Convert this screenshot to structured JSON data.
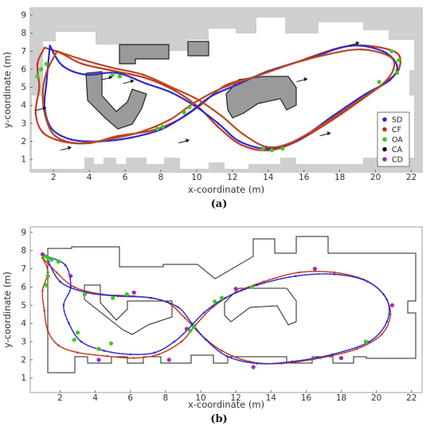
{
  "chart_data": [
    {
      "type": "scatter",
      "panel_label": "(a)",
      "xlabel": "x-coordinate (m)",
      "ylabel": "y-coordinate (m)",
      "xlim": [
        0.7,
        22.6
      ],
      "ylim": [
        0.3,
        9.4
      ],
      "xticks": [
        2,
        4,
        6,
        8,
        10,
        12,
        14,
        16,
        18,
        20,
        22
      ],
      "yticks": [
        1,
        2,
        3,
        4,
        5,
        6,
        7,
        8,
        9
      ],
      "background": "occupancy-grid-map",
      "legend": {
        "placement": "right",
        "entries": [
          {
            "label": "SD",
            "color": "#2b2bd6"
          },
          {
            "label": "CF",
            "color": "#b13a1a"
          },
          {
            "label": "OA",
            "color": "#39c91f"
          },
          {
            "label": "CA",
            "color": "#111111"
          },
          {
            "label": "CD",
            "color": "#a52ab8"
          }
        ]
      },
      "direction_arrows": [
        [
          18.8,
          7.4
        ],
        [
          15.9,
          5.4
        ],
        [
          17.2,
          2.4
        ],
        [
          9.3,
          2.0
        ],
        [
          2.7,
          1.6
        ],
        [
          1.3,
          3.8
        ],
        [
          6.2,
          5.3
        ],
        [
          5.0,
          5.5
        ]
      ],
      "trajectories": [
        {
          "name": "",
          "color": "#c23c20",
          "points": [
            [
              1.5,
              7.2
            ],
            [
              1.1,
              6.3
            ],
            [
              1.2,
              5.0
            ],
            [
              1.0,
              3.6
            ],
            [
              1.4,
              2.5
            ],
            [
              2.5,
              2.0
            ],
            [
              4.0,
              1.9
            ],
            [
              5.6,
              2.3
            ],
            [
              7.5,
              2.6
            ],
            [
              9.0,
              3.2
            ],
            [
              10.2,
              4.0
            ],
            [
              11.6,
              5.1
            ],
            [
              13.3,
              5.6
            ],
            [
              15.6,
              6.4
            ],
            [
              18.0,
              7.2
            ],
            [
              19.6,
              7.3
            ],
            [
              21.2,
              6.9
            ],
            [
              21.3,
              6.0
            ],
            [
              20.6,
              5.3
            ],
            [
              19.2,
              4.3
            ],
            [
              17.6,
              3.2
            ],
            [
              15.6,
              2.0
            ],
            [
              14.0,
              1.5
            ],
            [
              12.5,
              1.8
            ],
            [
              11.2,
              2.8
            ],
            [
              10.1,
              3.9
            ],
            [
              8.8,
              4.8
            ],
            [
              7.2,
              5.5
            ],
            [
              5.4,
              5.9
            ],
            [
              3.6,
              6.3
            ],
            [
              2.4,
              6.9
            ],
            [
              1.5,
              7.2
            ]
          ]
        },
        {
          "name": "",
          "color": "#2c2cd0",
          "points": [
            [
              1.8,
              7.3
            ],
            [
              2.5,
              6.2
            ],
            [
              3.8,
              5.7
            ],
            [
              5.5,
              5.8
            ],
            [
              7.2,
              5.2
            ],
            [
              8.6,
              4.7
            ],
            [
              10.0,
              3.9
            ],
            [
              11.2,
              3.0
            ],
            [
              12.4,
              2.0
            ],
            [
              14.0,
              1.6
            ],
            [
              15.7,
              2.1
            ],
            [
              17.6,
              3.4
            ],
            [
              19.4,
              4.6
            ],
            [
              20.8,
              5.4
            ],
            [
              21.2,
              6.2
            ],
            [
              20.4,
              7.0
            ],
            [
              18.6,
              7.3
            ],
            [
              16.3,
              6.6
            ],
            [
              14.0,
              5.9
            ],
            [
              12.4,
              5.2
            ],
            [
              10.8,
              4.5
            ],
            [
              9.6,
              3.6
            ],
            [
              8.1,
              2.7
            ],
            [
              6.3,
              2.2
            ],
            [
              4.6,
              2.0
            ],
            [
              3.0,
              2.1
            ],
            [
              1.9,
              2.7
            ],
            [
              1.5,
              3.9
            ],
            [
              1.6,
              5.2
            ],
            [
              1.7,
              6.3
            ],
            [
              1.8,
              7.3
            ]
          ]
        },
        {
          "name": "",
          "color": "#b84a22",
          "points": [
            [
              2.2,
              7.0
            ],
            [
              3.4,
              6.6
            ],
            [
              5.2,
              6.1
            ],
            [
              7.0,
              5.7
            ],
            [
              8.6,
              5.0
            ],
            [
              10.1,
              4.3
            ],
            [
              11.4,
              3.4
            ],
            [
              12.6,
              2.4
            ],
            [
              13.9,
              1.7
            ],
            [
              15.2,
              1.9
            ],
            [
              17.0,
              2.9
            ],
            [
              18.8,
              4.1
            ],
            [
              20.3,
              5.1
            ],
            [
              21.0,
              6.0
            ],
            [
              20.8,
              6.7
            ],
            [
              19.2,
              7.1
            ],
            [
              17.2,
              6.8
            ],
            [
              15.0,
              6.2
            ],
            [
              13.0,
              5.5
            ],
            [
              11.3,
              4.9
            ],
            [
              9.8,
              4.1
            ],
            [
              8.5,
              3.2
            ],
            [
              6.8,
              2.5
            ],
            [
              5.0,
              2.1
            ],
            [
              3.3,
              1.9
            ],
            [
              2.1,
              2.3
            ],
            [
              1.6,
              3.2
            ],
            [
              1.4,
              4.5
            ],
            [
              1.6,
              5.8
            ],
            [
              2.2,
              7.0
            ]
          ]
        },
        {
          "name": "",
          "color": "#3bcc22",
          "points": [
            [
              1.1,
              5.6
            ],
            [
              1.3,
              6.0
            ],
            [
              1.6,
              6.3
            ],
            [
              5.3,
              5.7
            ],
            [
              5.7,
              5.6
            ],
            [
              9.3,
              3.6
            ],
            [
              9.6,
              3.9
            ],
            [
              13.7,
              1.6
            ],
            [
              14.2,
              1.5
            ],
            [
              14.8,
              1.6
            ],
            [
              20.2,
              5.3
            ],
            [
              21.2,
              5.8
            ],
            [
              21.3,
              6.5
            ],
            [
              20.9,
              7.0
            ],
            [
              7.8,
              2.7
            ],
            [
              8.1,
              2.8
            ]
          ]
        }
      ]
    },
    {
      "type": "scatter",
      "panel_label": "(b)",
      "xlabel": "x-coordinate (m)",
      "ylabel": "y-coordinate (m)",
      "xlim": [
        0.3,
        22.6
      ],
      "ylim": [
        0.2,
        9.3
      ],
      "xticks": [
        2,
        4,
        6,
        8,
        10,
        12,
        14,
        16,
        18,
        20,
        22
      ],
      "yticks": [
        1,
        2,
        3,
        4,
        5,
        6,
        7,
        8,
        9
      ],
      "background": "polygon-outline-map",
      "trajectories": [
        {
          "name": "",
          "color": "#c23c20",
          "points": [
            [
              1.0,
              7.6
            ],
            [
              1.3,
              6.8
            ],
            [
              1.0,
              5.8
            ],
            [
              1.1,
              4.7
            ],
            [
              1.3,
              3.6
            ],
            [
              1.9,
              2.8
            ],
            [
              3.0,
              2.4
            ],
            [
              4.7,
              2.2
            ],
            [
              6.2,
              2.1
            ],
            [
              7.6,
              2.3
            ],
            [
              8.9,
              3.0
            ],
            [
              9.7,
              3.9
            ],
            [
              10.7,
              4.9
            ],
            [
              12.0,
              5.7
            ],
            [
              13.6,
              6.3
            ],
            [
              15.6,
              6.8
            ],
            [
              17.6,
              6.8
            ],
            [
              19.3,
              6.4
            ],
            [
              20.4,
              5.6
            ],
            [
              20.8,
              4.5
            ],
            [
              20.3,
              3.4
            ],
            [
              18.9,
              2.6
            ],
            [
              16.8,
              2.1
            ],
            [
              14.6,
              1.8
            ],
            [
              12.8,
              1.9
            ],
            [
              11.2,
              2.5
            ],
            [
              10.0,
              3.4
            ],
            [
              9.1,
              4.3
            ],
            [
              8.0,
              5.2
            ],
            [
              6.2,
              5.5
            ],
            [
              4.4,
              5.6
            ],
            [
              2.8,
              6.0
            ],
            [
              1.8,
              6.8
            ],
            [
              1.0,
              7.6
            ]
          ]
        },
        {
          "name": "",
          "color": "#2c2cd0",
          "points": [
            [
              1.2,
              7.7
            ],
            [
              2.3,
              7.2
            ],
            [
              2.6,
              6.0
            ],
            [
              2.2,
              5.0
            ],
            [
              2.5,
              4.0
            ],
            [
              3.2,
              3.0
            ],
            [
              4.5,
              2.5
            ],
            [
              6.0,
              2.3
            ],
            [
              7.4,
              2.4
            ],
            [
              8.5,
              3.0
            ],
            [
              9.3,
              3.7
            ],
            [
              10.2,
              4.6
            ],
            [
              11.4,
              5.4
            ],
            [
              13.2,
              6.1
            ],
            [
              15.4,
              6.6
            ],
            [
              17.6,
              6.7
            ],
            [
              19.5,
              6.3
            ],
            [
              20.6,
              5.3
            ],
            [
              20.6,
              4.1
            ],
            [
              19.6,
              3.0
            ],
            [
              17.5,
              2.3
            ],
            [
              15.2,
              1.9
            ],
            [
              13.2,
              1.8
            ],
            [
              11.5,
              2.2
            ],
            [
              10.3,
              3.1
            ],
            [
              9.5,
              4.0
            ],
            [
              8.7,
              4.9
            ],
            [
              7.2,
              5.4
            ],
            [
              5.3,
              5.5
            ],
            [
              3.5,
              5.7
            ],
            [
              2.0,
              6.3
            ],
            [
              1.2,
              7.7
            ]
          ]
        },
        {
          "name": "",
          "color": "#39c91f",
          "points": [
            [
              1.1,
              7.7
            ],
            [
              1.3,
              7.6
            ],
            [
              1.5,
              7.5
            ],
            [
              1.9,
              7.4
            ],
            [
              1.3,
              6.6
            ],
            [
              1.2,
              6.1
            ],
            [
              3.4,
              5.6
            ],
            [
              5.0,
              5.4
            ],
            [
              5.8,
              5.6
            ],
            [
              9.4,
              3.6
            ],
            [
              9.6,
              3.8
            ],
            [
              2.8,
              3.1
            ],
            [
              3.0,
              3.5
            ],
            [
              4.2,
              2.6
            ],
            [
              4.9,
              2.9
            ],
            [
              10.8,
              5.2
            ],
            [
              11.2,
              5.4
            ],
            [
              12.9,
              6.0
            ],
            [
              19.4,
              3.0
            ]
          ]
        },
        {
          "name": "",
          "color": "#a52ab8",
          "points": [
            [
              1.0,
              7.8
            ],
            [
              2.6,
              6.6
            ],
            [
              6.2,
              5.7
            ],
            [
              9.2,
              3.7
            ],
            [
              12.0,
              5.9
            ],
            [
              16.5,
              7.0
            ],
            [
              20.9,
              5.0
            ],
            [
              18.0,
              2.1
            ],
            [
              13.0,
              1.6
            ],
            [
              8.2,
              2.0
            ],
            [
              4.2,
              2.0
            ]
          ]
        }
      ]
    }
  ]
}
